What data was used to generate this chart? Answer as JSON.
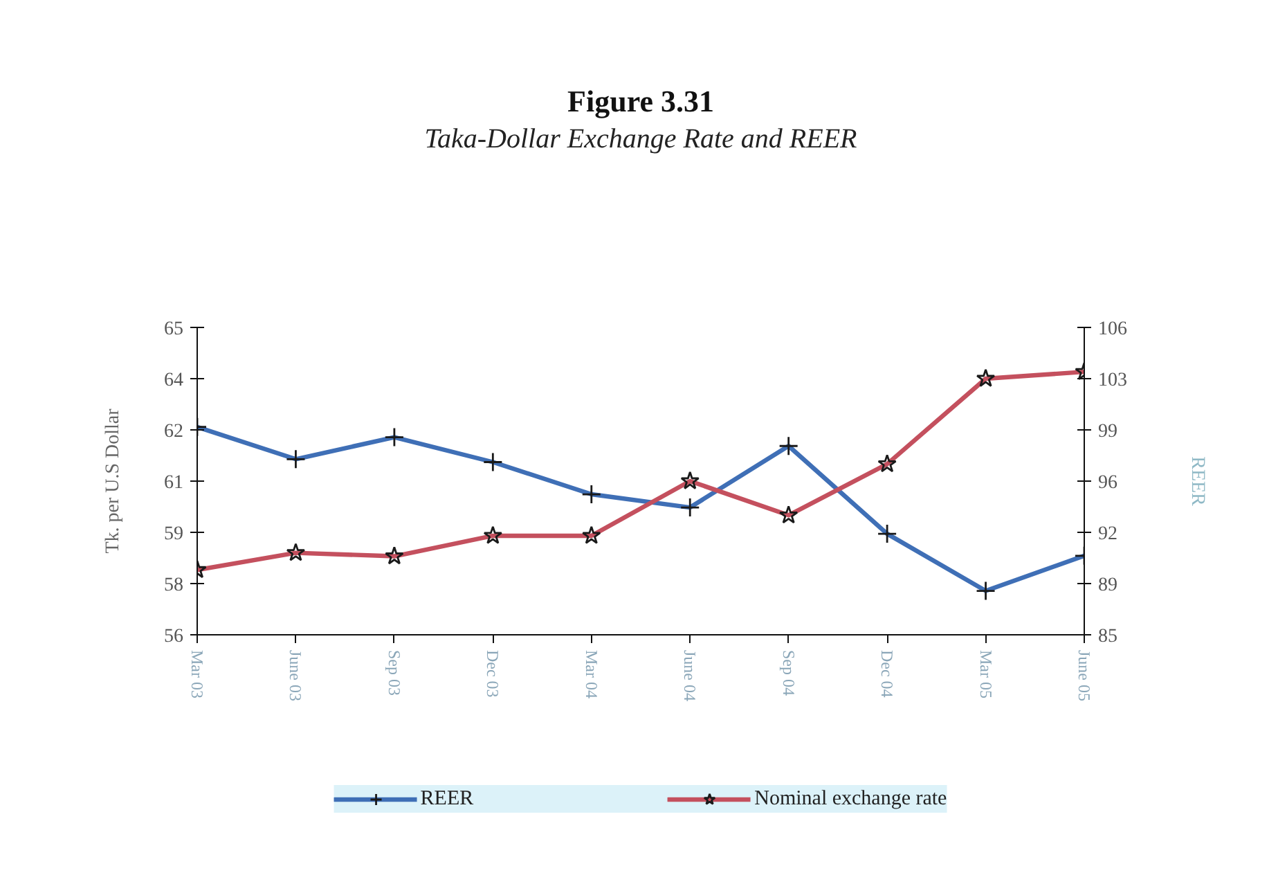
{
  "chart_data": {
    "type": "line",
    "title": "Figure 3.31",
    "subtitle": "Taka-Dollar Exchange Rate and REER",
    "ylabel": "Tk. per U.S Dollar",
    "y2label": "REER",
    "categories": [
      "Mar 03",
      "June 03",
      "Sep 03",
      "Dec 03",
      "Mar 04",
      "June 04",
      "Sep 04",
      "Dec 04",
      "Mar 05",
      "June 05"
    ],
    "series": [
      {
        "name": "REER",
        "color": "#3f6fb6",
        "axis": "y2",
        "marker": "cross",
        "values": [
          99.2,
          97.0,
          98.5,
          96.8,
          94.6,
          93.7,
          97.9,
          91.9,
          88.0,
          90.4
        ]
      },
      {
        "name": "Nominal exchange rate",
        "color": "#c4505e",
        "marker": "star",
        "values": [
          57.9,
          58.4,
          58.3,
          58.9,
          58.9,
          60.5,
          59.5,
          61.0,
          63.5,
          63.7
        ]
      }
    ],
    "ylim": [
      56,
      65
    ],
    "yticks": [
      56,
      {
        "value": 57.5,
        "label": "58"
      },
      59,
      {
        "value": 60.5,
        "label": "61"
      },
      62,
      {
        "value": 63.5,
        "label": "64"
      },
      65
    ],
    "y2lim": [
      85,
      106
    ],
    "y2ticks": [
      85,
      {
        "value": 88.5,
        "label": "89"
      },
      92,
      {
        "value": 95.5,
        "label": "96"
      },
      99,
      {
        "value": 102.5,
        "label": "103"
      },
      106
    ],
    "legend": "bottom",
    "line_style": "solid"
  }
}
